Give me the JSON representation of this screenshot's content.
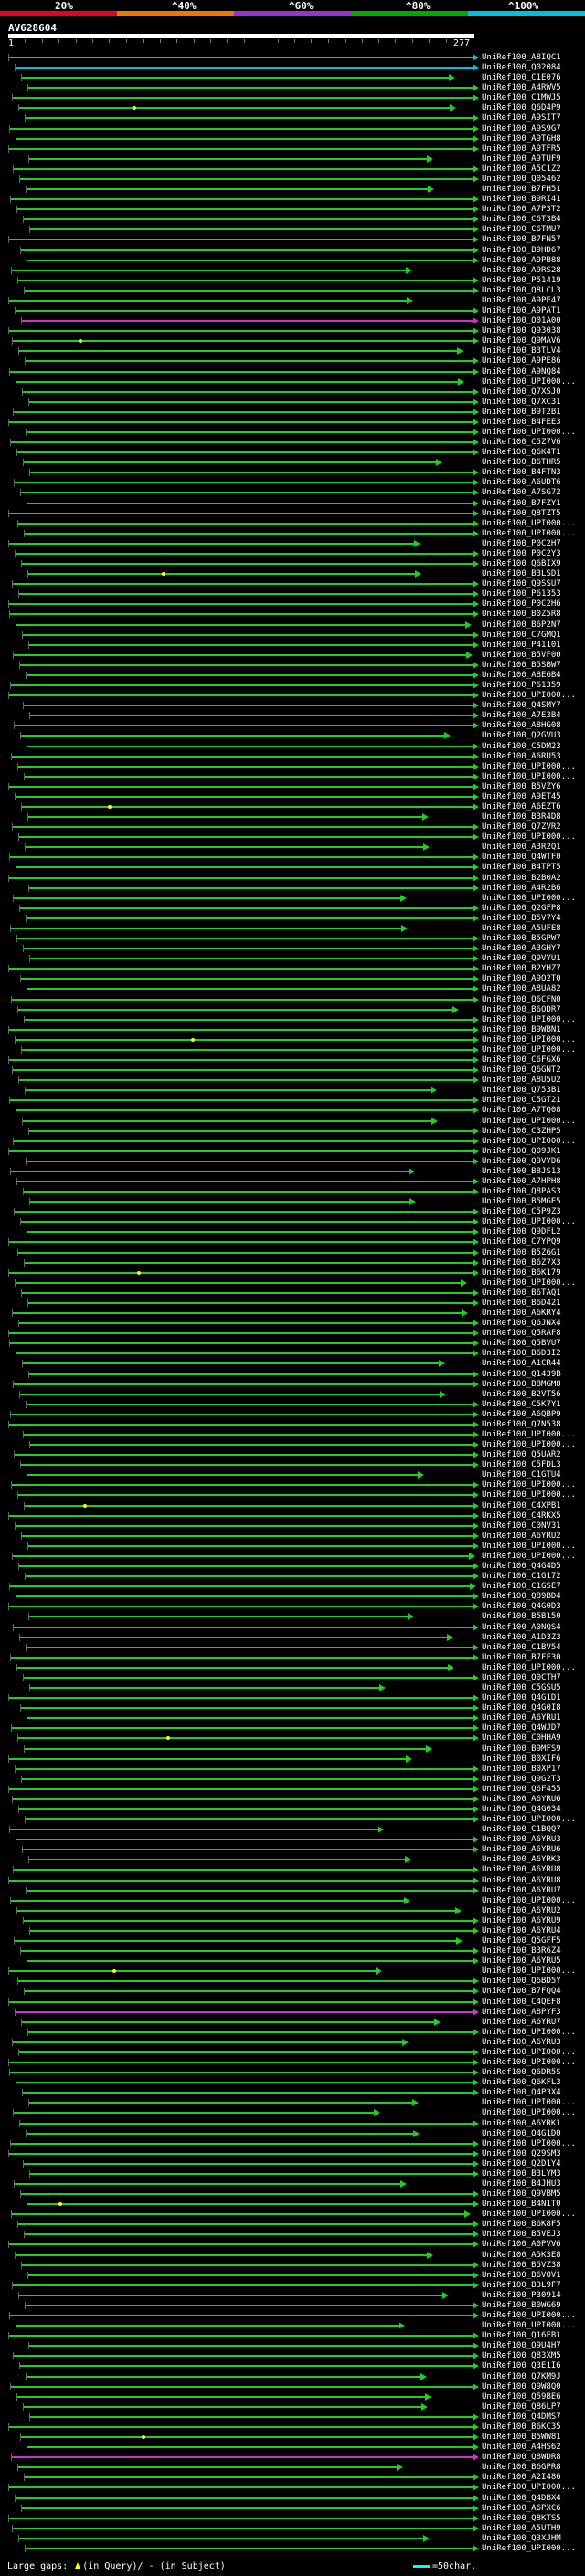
{
  "scale": {
    "labels": [
      "20%",
      "^40%",
      "^60%",
      "^80%",
      "^100%"
    ],
    "colors": [
      "#e8001c",
      "#ee7700",
      "#9933cc",
      "#00aa00",
      "#00c0e0"
    ]
  },
  "query": {
    "name": "AV628604",
    "start": "1",
    "end": "277"
  },
  "legend": {
    "large_gaps_label": "Large gaps:",
    "query_gap_label": "(in Query)/",
    "subject_gap_label": "- (in Subject)",
    "scale_label": "=50char."
  },
  "colors": {
    "identity_green": "#22cc22",
    "identity_cyan": "#00c0e0",
    "identity_purple": "#cc33cc",
    "background": "#000000",
    "gap_marker": "#ffff00"
  },
  "hits": [
    "UniRef100_A8IQC1",
    "UniRef100_Q02084",
    "UniRef100_C1E076",
    "UniRef100_A4RWV5",
    "UniRef100_C1MWJ5",
    "UniRef100_Q6D4P9",
    "UniRef100_A9SIT7",
    "UniRef100_A9S9G7",
    "UniRef100_A9TGH8",
    "UniRef100_A9TFR5",
    "UniRef100_A9TUF9",
    "UniRef100_A5C1Z2",
    "UniRef100_Q05462",
    "UniRef100_B7FH51",
    "UniRef100_B9RI41",
    "UniRef100_A7P3T2",
    "UniRef100_C6T3B4",
    "UniRef100_C6TMU7",
    "UniRef100_B7FN57",
    "UniRef100_B9HD67",
    "UniRef100_A9PB88",
    "UniRef100_A9RS28",
    "UniRef100_P51419",
    "UniRef100_Q8LCL3",
    "UniRef100_A9PE47",
    "UniRef100_A9PAT1",
    "UniRef100_Q01A00",
    "UniRef100_Q93038",
    "UniRef100_Q9MAV6",
    "UniRef100_B3TLV4",
    "UniRef100_A9PE86",
    "UniRef100_A9NQ84",
    "UniRef100_UPI000...",
    "UniRef100_Q7XSJ0",
    "UniRef100_Q7XC31",
    "UniRef100_B9T2B1",
    "UniRef100_B4FEE3",
    "UniRef100_UPI000...",
    "UniRef100_C5Z7V6",
    "UniRef100_Q6K4T1",
    "UniRef100_B6THR5",
    "UniRef100_B4FTN3",
    "UniRef100_A6UDT6",
    "UniRef100_A7SG72",
    "UniRef100_B7FZY1",
    "UniRef100_Q8TZT5",
    "UniRef100_UPI000...",
    "UniRef100_UPI000...",
    "UniRef100_P0C2H7",
    "UniRef100_P0C2Y3",
    "UniRef100_Q6BIX9",
    "UniRef100_B3LSD1",
    "UniRef100_Q9SSU7",
    "UniRef100_P61353",
    "UniRef100_P0C2H6",
    "UniRef100_B0Z5R8",
    "UniRef100_B6P2N7",
    "UniRef100_C7GMQ1",
    "UniRef100_P41101",
    "UniRef100_B5VF00",
    "UniRef100_B5SBW7",
    "UniRef100_A8E6B4",
    "UniRef100_P61359",
    "UniRef100_UPI000...",
    "UniRef100_Q4SMY7",
    "UniRef100_A7E3B4",
    "UniRef100_A8HG08",
    "UniRef100_Q2GVU3",
    "UniRef100_C5DM23",
    "UniRef100_A6RU53",
    "UniRef100_UPI000...",
    "UniRef100_UPI000...",
    "UniRef100_B5VZY6",
    "UniRef100_A9ET45",
    "UniRef100_A6EZT6",
    "UniRef100_B3R4D8",
    "UniRef100_Q7ZVR2",
    "UniRef100_UPI000...",
    "UniRef100_A3R2Q1",
    "UniRef100_Q4WTF0",
    "UniRef100_B4TPT5",
    "UniRef100_B2B0A2",
    "UniRef100_A4R2B6",
    "UniRef100_UPI000...",
    "UniRef100_Q2GFP8",
    "UniRef100_B5V7Y4",
    "UniRef100_A5UFE8",
    "UniRef100_B5GPW7",
    "UniRef100_A3GHY7",
    "UniRef100_Q9VYU1",
    "UniRef100_B2YHZ7",
    "UniRef100_A9Q2T0",
    "UniRef100_A8UA82",
    "UniRef100_Q6CFN0",
    "UniRef100_B6QDR7",
    "UniRef100_UPI000...",
    "UniRef100_B9WBN1",
    "UniRef100_UPI000...",
    "UniRef100_UPI000...",
    "UniRef100_C6FGX6",
    "UniRef100_Q6GNT2",
    "UniRef100_A8U5U2",
    "UniRef100_Q753B1",
    "UniRef100_C5GT21",
    "UniRef100_A7TQ08",
    "UniRef100_UPI000...",
    "UniRef100_C3ZHP5",
    "UniRef100_UPI000...",
    "UniRef100_Q09JK1",
    "UniRef100_Q9VYD6",
    "UniRef100_B8JS13",
    "UniRef100_A7HPH8",
    "UniRef100_Q8PAS3",
    "UniRef100_B5MGE5",
    "UniRef100_C5P9Z3",
    "UniRef100_UPI000...",
    "UniRef100_Q9DFL2",
    "UniRef100_C7YPQ9",
    "UniRef100_B5Z6G1",
    "UniRef100_B6Z7X3",
    "UniRef100_B6K179",
    "UniRef100_UPI000...",
    "UniRef100_B6TAQ1",
    "UniRef100_B6D421",
    "UniRef100_A6KRY4",
    "UniRef100_Q6JNX4",
    "UniRef100_Q5RAF8",
    "UniRef100_Q5BVU7",
    "UniRef100_B6D3I2",
    "UniRef100_A1CR44",
    "UniRef100_Q1439B",
    "UniRef100_B8MGM8",
    "UniRef100_B2VT56",
    "UniRef100_C5K7Y1",
    "UniRef100_A6QBP9",
    "UniRef100_Q7N538",
    "UniRef100_UPI000...",
    "UniRef100_UPI000...",
    "UniRef100_Q5UAR2",
    "UniRef100_C5FDL3",
    "UniRef100_C1GTU4",
    "UniRef100_UPI000...",
    "UniRef100_UPI000...",
    "UniRef100_C4XPB1",
    "UniRef100_C4RKX5",
    "UniRef100_C0NV31",
    "UniRef100_A6YRU2",
    "UniRef100_UPI000...",
    "UniRef100_UPI000...",
    "UniRef100_Q4G4D5",
    "UniRef100_C1G172",
    "UniRef100_C1GSE7",
    "UniRef100_Q89BD4",
    "UniRef100_Q4G0D3",
    "UniRef100_B5B150",
    "UniRef100_A0NQS4",
    "UniRef100_A1D3Z3",
    "UniRef100_C1BV54",
    "UniRef100_B7FF30",
    "UniRef100_UPI000...",
    "UniRef100_Q0CTH7",
    "UniRef100_C5GSU5",
    "UniRef100_Q4G1D1",
    "UniRef100_Q4G0I8",
    "UniRef100_A6YRU1",
    "UniRef100_Q4WJD7",
    "UniRef100_C0HHA9",
    "UniRef100_B9MFS9",
    "UniRef100_B0XIF6",
    "UniRef100_B0XP17",
    "UniRef100_Q9G2T3",
    "UniRef100_Q6F455",
    "UniRef100_A6YRU6",
    "UniRef100_Q4G034",
    "UniRef100_UPI000...",
    "UniRef100_C1BQQ7",
    "UniRef100_A6YRU3",
    "UniRef100_A6YRU6",
    "UniRef100_A6YRK3",
    "UniRef100_A6YRU8",
    "UniRef100_A6YRU8",
    "UniRef100_A6YRU7",
    "UniRef100_UPI000...",
    "UniRef100_A6YRU2",
    "UniRef100_A6YRU9",
    "UniRef100_A6YRU4",
    "UniRef100_Q5GFF5",
    "UniRef100_B3R6Z4",
    "UniRef100_A6YRU5",
    "UniRef100_UPI000...",
    "UniRef100_Q6BD5Y",
    "UniRef100_B7FQQ4",
    "UniRef100_C4QEF8",
    "UniRef100_A8PYF3",
    "UniRef100_A6YRU7",
    "UniRef100_UPI000...",
    "UniRef100_A6YRU3",
    "UniRef100_UPI000...",
    "UniRef100_UPI000...",
    "UniRef100_Q6DR5S",
    "UniRef100_Q6KFL3",
    "UniRef100_Q4P3X4",
    "UniRef100_UPI000...",
    "UniRef100_UPI000...",
    "UniRef100_A6YRK1",
    "UniRef100_Q4G1D0",
    "UniRef100_UPI000...",
    "UniRef100_Q29SM3",
    "UniRef100_Q2D1Y4",
    "UniRef100_B3LYM3",
    "UniRef100_B4JHU3",
    "UniRef100_Q9VBM5",
    "UniRef100_B4N1T0",
    "UniRef100_UPI000...",
    "UniRef100_B6K8F5",
    "UniRef100_B5VEJ3",
    "UniRef100_A0PVV6",
    "UniRef100_A5K3E8",
    "UniRef100_B5VZ38",
    "UniRef100_B6V8V1",
    "UniRef100_B3L9F7",
    "UniRef100_P30914",
    "UniRef100_B0WG69",
    "UniRef100_UPI000...",
    "UniRef100_UPI000...",
    "UniRef100_Q16FB1",
    "UniRef100_Q9U4H7",
    "UniRef100_Q83XM5",
    "UniRef100_Q3E1I6",
    "UniRef100_Q7KM9J",
    "UniRef100_Q9W8Q0",
    "UniRef100_Q59BE6",
    "UniRef100_Q86LP7",
    "UniRef100_Q4DMS7",
    "UniRef100_B6KC35",
    "UniRef100_B5WW81",
    "UniRef100_A4HS62",
    "UniRef100_Q8WDR8",
    "UniRef100_B6GPR8",
    "UniRef100_A2I486",
    "UniRef100_UPI000...",
    "UniRef100_Q4DBX4",
    "UniRef100_A6PXC6",
    "UniRef100_Q8KTS5",
    "UniRef100_A5UTH9",
    "UniRef100_Q3XJHM",
    "UniRef100_UPI000..."
  ]
}
